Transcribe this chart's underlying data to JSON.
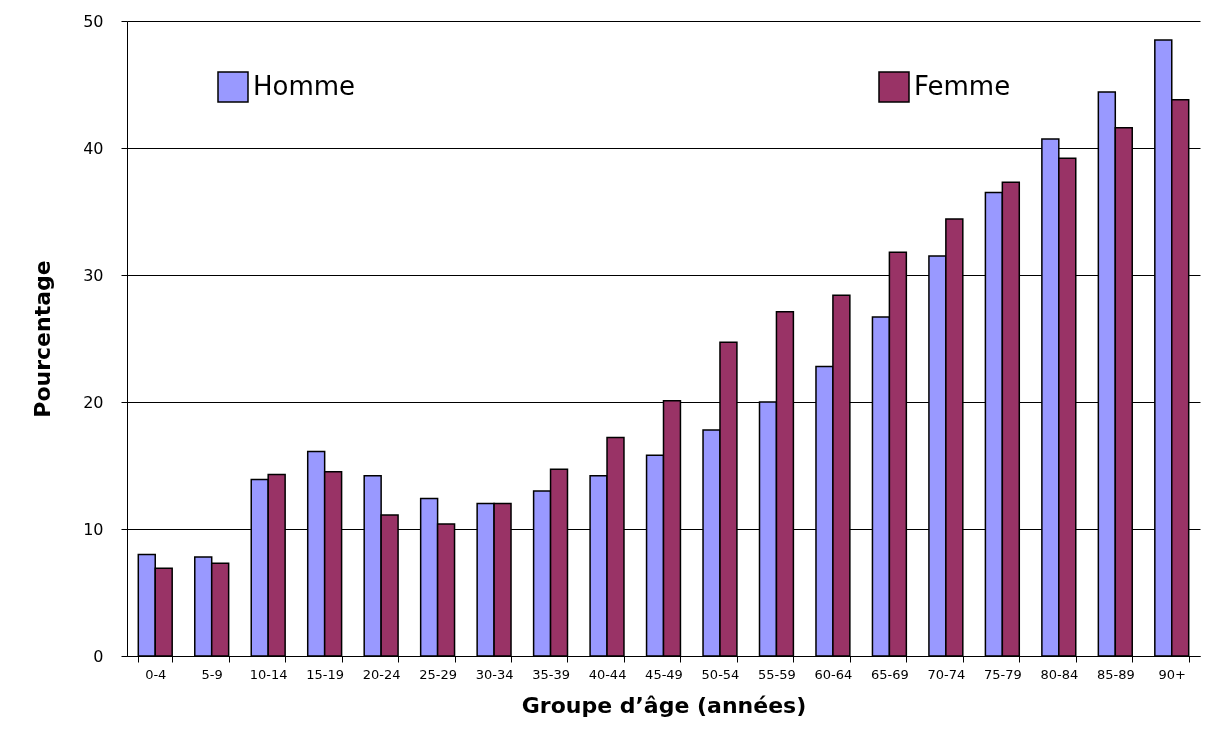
{
  "chart_data": {
    "type": "bar",
    "xlabel": "Groupe d’âge (années)",
    "ylabel": "Pourcentage",
    "categories": [
      "0-4",
      "5-9",
      "10-14",
      "15-19",
      "20-24",
      "25-29",
      "30-34",
      "35-39",
      "40-44",
      "45-49",
      "50-54",
      "55-59",
      "60-64",
      "65-69",
      "70-74",
      "75-79",
      "80-84",
      "85-89",
      "90+"
    ],
    "series": [
      {
        "name": "Homme",
        "color": "#9999ff",
        "values": [
          8.0,
          7.8,
          13.9,
          16.1,
          14.2,
          12.4,
          12.0,
          13.0,
          14.2,
          15.8,
          17.8,
          20.0,
          22.8,
          26.7,
          31.5,
          36.5,
          40.7,
          44.4,
          48.5
        ]
      },
      {
        "name": "Femme",
        "color": "#993366",
        "values": [
          6.9,
          7.3,
          14.3,
          14.5,
          11.1,
          10.4,
          12.0,
          14.7,
          17.2,
          20.1,
          24.7,
          27.1,
          28.4,
          31.8,
          34.4,
          37.3,
          39.2,
          41.6,
          43.8
        ]
      }
    ],
    "ylim": [
      0,
      50
    ],
    "yticks": [
      0,
      10,
      20,
      30,
      40,
      50
    ],
    "grid": "y",
    "legend": "top"
  }
}
